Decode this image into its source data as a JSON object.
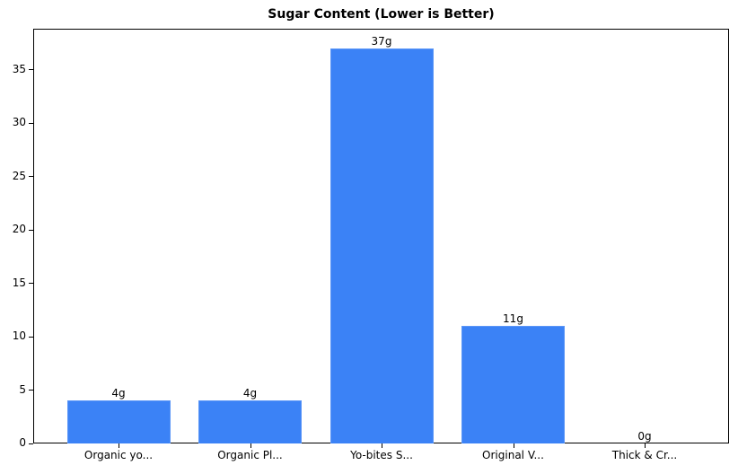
{
  "chart_data": {
    "type": "bar",
    "title": "Sugar Content (Lower is Better)",
    "xlabel": "",
    "ylabel": "",
    "categories": [
      "Organic yo...",
      "Organic Pl...",
      "Yo-bites S...",
      "Original V...",
      "Thick & Cr..."
    ],
    "values": [
      4,
      4,
      37,
      11,
      0
    ],
    "value_labels": [
      "4g",
      "4g",
      "37g",
      "11g",
      "0g"
    ],
    "ylim": [
      0,
      38.85
    ],
    "yticks": [
      0,
      5,
      10,
      15,
      20,
      25,
      30,
      35
    ],
    "grid": false,
    "legend": null,
    "bar_color": "#3b82f6"
  }
}
